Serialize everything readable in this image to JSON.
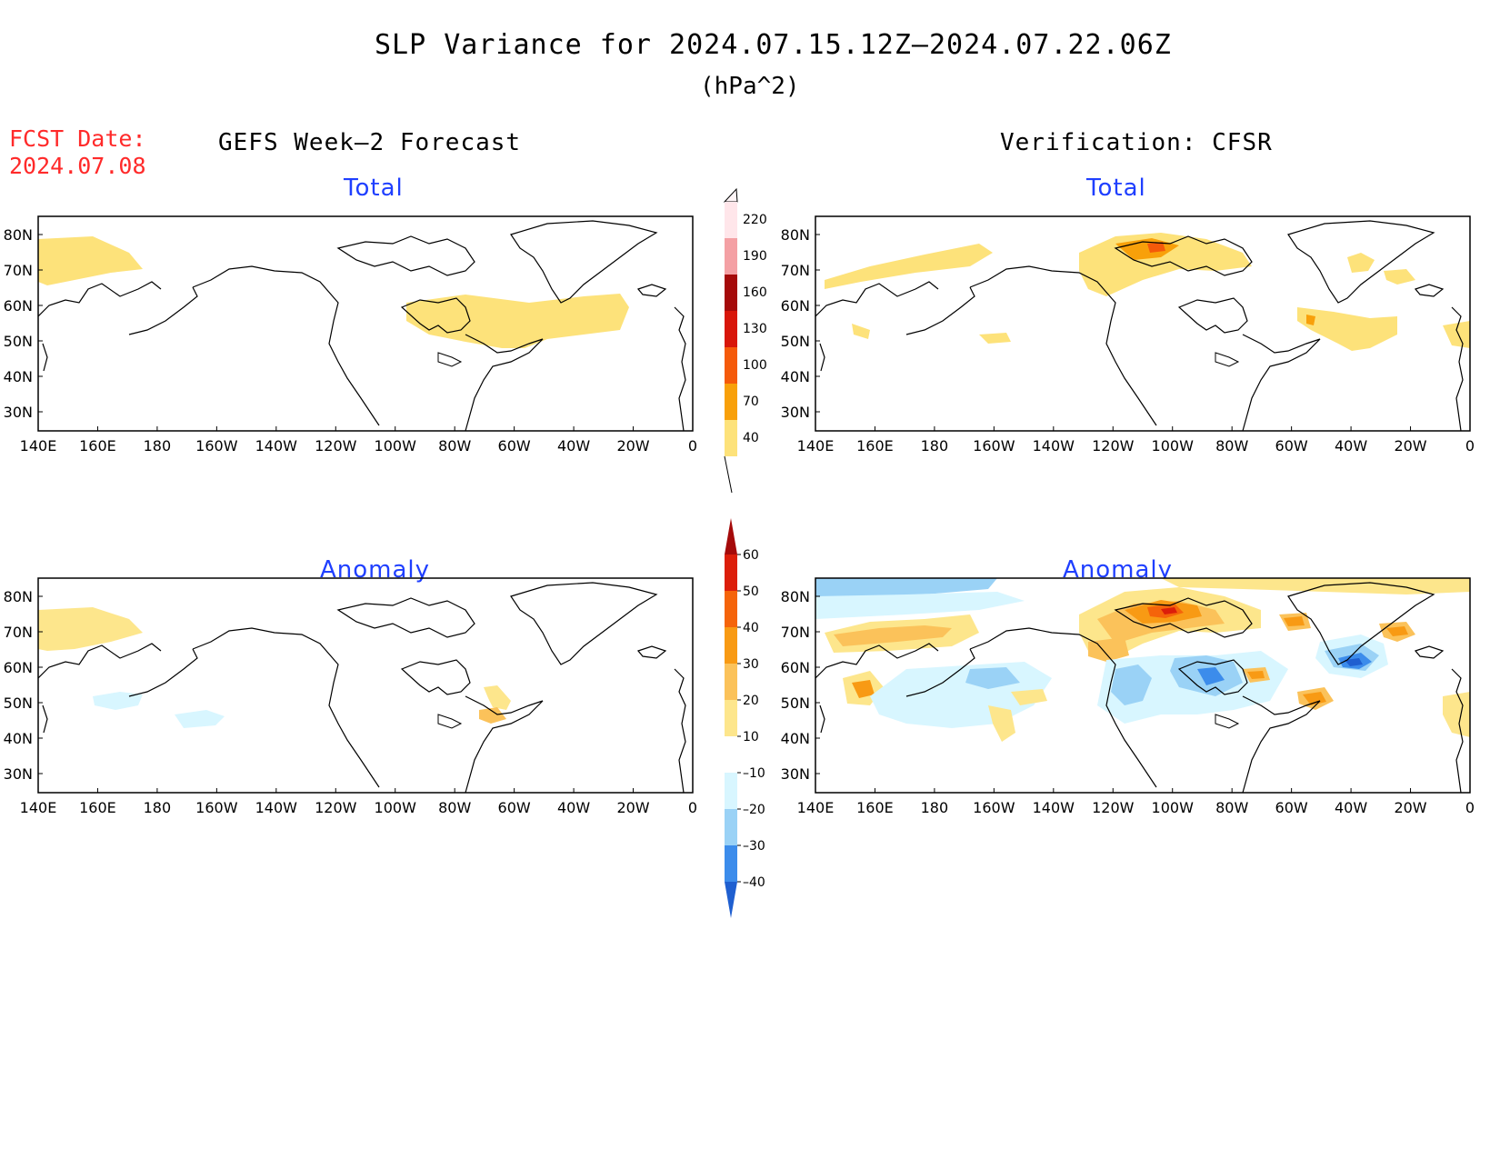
{
  "title": "SLP Variance for 2024.07.15.12Z–2024.07.22.06Z",
  "units": "(hPa^2)",
  "fcst_label": "FCST Date:",
  "fcst_date": "2024.07.08",
  "left_header": "GEFS Week–2 Forecast",
  "right_header": "Verification: CFSR",
  "panel_titles": {
    "total": "Total",
    "anomaly": "Anomaly"
  },
  "lat_labels": [
    "80N",
    "70N",
    "60N",
    "50N",
    "40N",
    "30N"
  ],
  "lon_labels": [
    "140E",
    "160E",
    "180",
    "160W",
    "140W",
    "120W",
    "100W",
    "80W",
    "60W",
    "40W",
    "20W",
    "0"
  ],
  "colorbar_total": {
    "labels": [
      "220",
      "190",
      "160",
      "130",
      "100",
      "70",
      "40"
    ],
    "colors": [
      "#ffe6ea",
      "#f4a0a4",
      "#a50a0a",
      "#d8160a",
      "#f55a0a",
      "#f8a00a",
      "#fde27a"
    ]
  },
  "colorbar_anomaly": {
    "labels": [
      "60",
      "50",
      "40",
      "30",
      "20",
      "10",
      "–10",
      "–20",
      "–30",
      "–40"
    ],
    "colors": [
      "#a50a0a",
      "#dc1e0a",
      "#f5640a",
      "#f89a14",
      "#fbc25a",
      "#fde68c",
      "#ffffff",
      "#d8f6ff",
      "#9ad2f6",
      "#3c8ceb",
      "#1f5fd0"
    ]
  },
  "colors": {
    "title_red": "#ff2a2a",
    "panel_blue": "#1f3fff"
  }
}
